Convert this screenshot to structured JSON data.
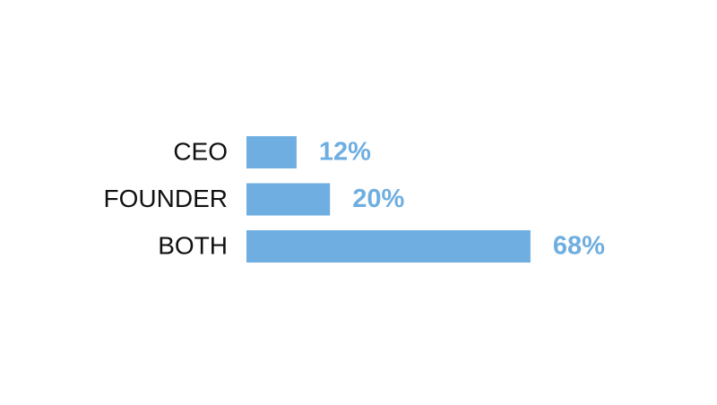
{
  "chart_data": {
    "type": "bar",
    "orientation": "horizontal",
    "categories": [
      "CEO",
      "FOUNDER",
      "BOTH"
    ],
    "values": [
      12,
      20,
      68
    ],
    "value_labels": [
      "12%",
      "20%",
      "68%"
    ],
    "color": "#6eaee0"
  }
}
